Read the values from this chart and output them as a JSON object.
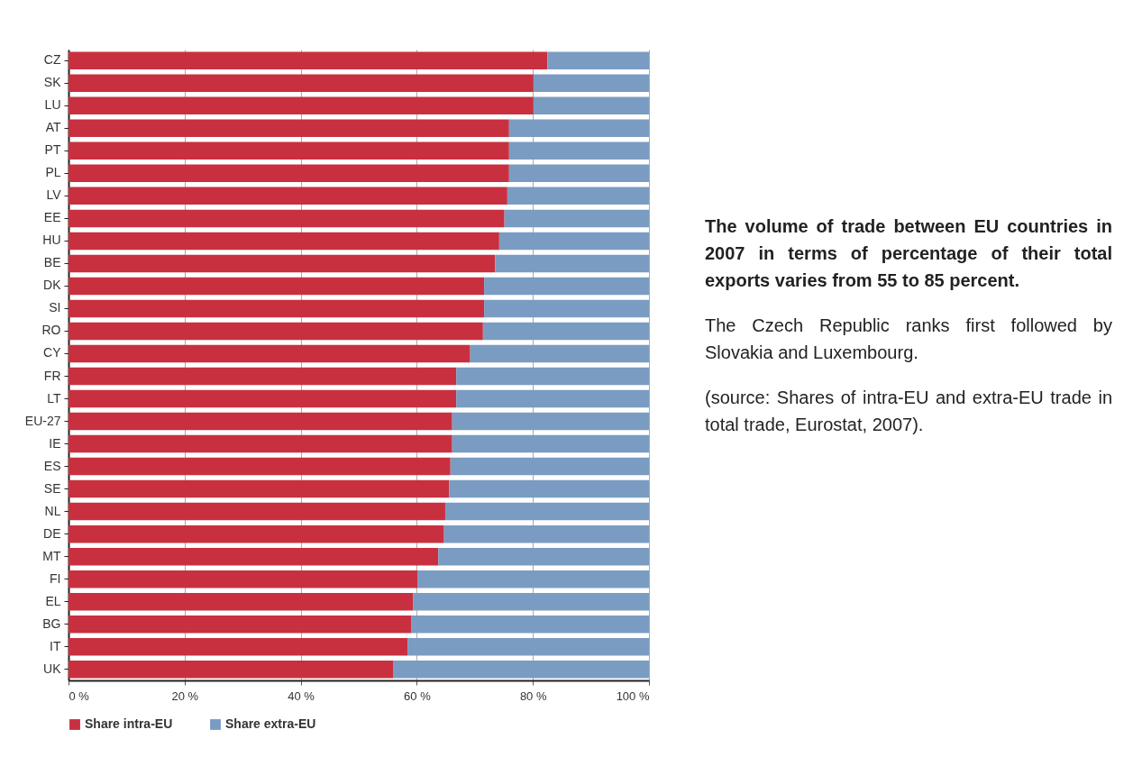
{
  "chart_data": {
    "type": "bar",
    "orientation": "horizontal",
    "stacked": true,
    "title": "The volume of trade between EU countries in 2007 in terms of percentage of their total exports varies from 55 to 85 percent.",
    "annotations": [
      "The Czech Republic ranks first followed by Slovakia and Luxembourg.",
      "(source: Shares of intra-EU and extra-EU trade in total trade, Eurostat, 2007)."
    ],
    "categories": [
      "CZ",
      "SK",
      "LU",
      "AT",
      "PT",
      "PL",
      "LV",
      "EE",
      "HU",
      "BE",
      "DK",
      "SI",
      "RO",
      "CY",
      "FR",
      "LT",
      "EU-27",
      "IE",
      "ES",
      "SE",
      "NL",
      "DE",
      "MT",
      "FI",
      "EL",
      "BG",
      "IT",
      "UK"
    ],
    "series": [
      {
        "name": "Share intra-EU",
        "color": "#c8303f",
        "values": [
          82.5,
          80.1,
          80.1,
          75.9,
          75.9,
          75.9,
          75.6,
          75.1,
          74.2,
          73.5,
          71.6,
          71.6,
          71.4,
          69.2,
          66.8,
          66.8,
          66.1,
          66.1,
          65.8,
          65.6,
          64.9,
          64.7,
          63.7,
          60.1,
          59.4,
          59.1,
          58.4,
          56.0
        ]
      },
      {
        "name": "Share extra-EU",
        "color": "#7a9cc2",
        "values": [
          17.5,
          19.9,
          19.9,
          24.1,
          24.1,
          24.1,
          24.4,
          24.9,
          25.8,
          26.5,
          28.4,
          28.4,
          28.6,
          30.8,
          33.2,
          33.2,
          33.9,
          33.9,
          34.2,
          34.4,
          35.1,
          35.3,
          36.3,
          39.9,
          40.6,
          40.9,
          41.6,
          44.0
        ]
      }
    ],
    "xlim": [
      0,
      100
    ],
    "xticks": [
      {
        "value": 0,
        "label": "0 %"
      },
      {
        "value": 20,
        "label": "20 %"
      },
      {
        "value": 40,
        "label": "40 %"
      },
      {
        "value": 60,
        "label": "60 %"
      },
      {
        "value": 80,
        "label": "80 %"
      },
      {
        "value": 100,
        "label": "100 %"
      }
    ],
    "grid": "x",
    "legend": "bottom"
  }
}
